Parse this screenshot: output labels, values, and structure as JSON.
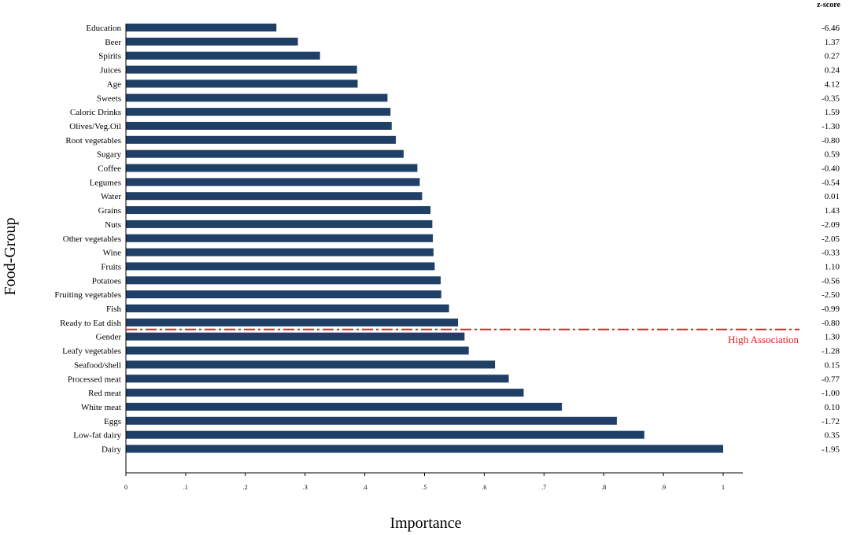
{
  "chart_data": {
    "type": "bar",
    "orientation": "horizontal",
    "xlabel": "Importance",
    "ylabel": "Food-Group",
    "xlim": [
      0,
      1
    ],
    "x_ticks": [
      "0",
      ".1",
      ".2",
      ".3",
      ".4",
      ".5",
      ".6",
      ".7",
      ".8",
      ".9",
      "1"
    ],
    "bar_color": "#1f3f66",
    "categories": [
      "Education",
      "Beer",
      "Spirits",
      "Juices",
      "Age",
      "Sweets",
      "Caloric Drinks",
      "Olives/Veg.Oil",
      "Root vegetables",
      "Sugary",
      "Coffee",
      "Legumes",
      "Water",
      "Grains",
      "Nuts",
      "Other vegetables",
      "Wine",
      "Fruits",
      "Potatoes",
      "Fruiting vegetables",
      "Fish",
      "Ready to Eat dish",
      "Gender",
      "Leafy vegetables",
      "Seafood/shell",
      "Processed meat",
      "Red meat",
      "White meat",
      "Eggs",
      "Low-fat dairy",
      "Dairy"
    ],
    "values": [
      0.252,
      0.288,
      0.325,
      0.387,
      0.388,
      0.438,
      0.443,
      0.445,
      0.452,
      0.465,
      0.488,
      0.492,
      0.496,
      0.51,
      0.513,
      0.514,
      0.515,
      0.517,
      0.527,
      0.528,
      0.541,
      0.556,
      0.567,
      0.574,
      0.618,
      0.641,
      0.666,
      0.73,
      0.822,
      0.868,
      1.0
    ],
    "z_score_header": "z-score",
    "z_scores": [
      "-6.46",
      "1.37",
      "0.27",
      "0.24",
      "4.12",
      "-0.35",
      "1.59",
      "-1.30",
      "-0.80",
      "0.59",
      "-0.40",
      "-0.54",
      "0.01",
      "1.43",
      "-2.09",
      "-2.05",
      "-0.33",
      "1.10",
      "-0.56",
      "-2.50",
      "-0.99",
      "-0.80",
      "1.30",
      "-1.28",
      "0.15",
      "-0.77",
      "-1.00",
      "0.10",
      "-1.72",
      "0.35",
      "-1.95"
    ],
    "reference_line": {
      "label": "High Association",
      "color": "#e02020",
      "style": "dash-dot",
      "between": [
        "Ready to Eat dish",
        "Gender"
      ]
    }
  }
}
